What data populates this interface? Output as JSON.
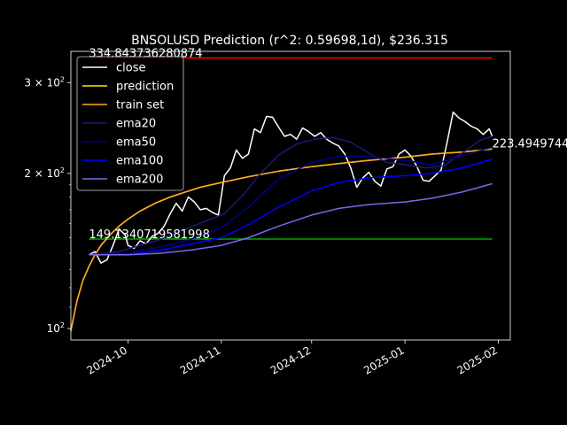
{
  "chart_data": {
    "type": "line",
    "title": "BNSOLUSD Prediction (r^2: 0.59698,1d), $236.315",
    "xlabel": "",
    "ylabel": "",
    "yscale": "log",
    "ylim": [
      95,
      345
    ],
    "xlim": [
      "2024-09-12",
      "2025-02-05"
    ],
    "y_ticks": [
      {
        "value": 100,
        "base": "10",
        "exp": "2"
      },
      {
        "value": 200,
        "base": "2 × 10",
        "exp": "2"
      },
      {
        "value": 300,
        "base": "3 × 10",
        "exp": "2"
      }
    ],
    "x_ticks": [
      {
        "date": "2024-10-01",
        "label": "2024-10"
      },
      {
        "date": "2024-11-01",
        "label": "2024-11"
      },
      {
        "date": "2024-12-01",
        "label": "2024-12"
      },
      {
        "date": "2025-01-01",
        "label": "2025-01"
      },
      {
        "date": "2025-02-01",
        "label": "2025-02"
      }
    ],
    "grid": false,
    "legend_position": "top-left",
    "annotations": [
      {
        "text": "334.84373628087​4",
        "x": "2024-09-18",
        "y": 334.8437362808744
      },
      {
        "text": "149.1340719581998",
        "x": "2024-09-18",
        "y": 149.1340719581998
      },
      {
        "text": "223.4949744",
        "x": "2025-01-30",
        "y": 223.4949744
      }
    ],
    "series": [
      {
        "name": "close",
        "color": "#ffffff",
        "x": [
          "2024-09-18",
          "2024-09-20",
          "2024-09-22",
          "2024-09-24",
          "2024-09-26",
          "2024-09-28",
          "2024-09-30",
          "2024-10-01",
          "2024-10-03",
          "2024-10-05",
          "2024-10-07",
          "2024-10-09",
          "2024-10-11",
          "2024-10-13",
          "2024-10-15",
          "2024-10-17",
          "2024-10-19",
          "2024-10-21",
          "2024-10-23",
          "2024-10-25",
          "2024-10-27",
          "2024-10-29",
          "2024-10-31",
          "2024-11-02",
          "2024-11-04",
          "2024-11-06",
          "2024-11-08",
          "2024-11-10",
          "2024-11-12",
          "2024-11-14",
          "2024-11-16",
          "2024-11-18",
          "2024-11-20",
          "2024-11-22",
          "2024-11-24",
          "2024-11-26",
          "2024-11-28",
          "2024-11-30",
          "2024-12-02",
          "2024-12-04",
          "2024-12-06",
          "2024-12-08",
          "2024-12-10",
          "2024-12-12",
          "2024-12-14",
          "2024-12-16",
          "2024-12-18",
          "2024-12-20",
          "2024-12-22",
          "2024-12-24",
          "2024-12-26",
          "2024-12-28",
          "2024-12-30",
          "2025-01-01",
          "2025-01-03",
          "2025-01-05",
          "2025-01-07",
          "2025-01-09",
          "2025-01-11",
          "2025-01-13",
          "2025-01-15",
          "2025-01-17",
          "2025-01-19",
          "2025-01-21",
          "2025-01-23",
          "2025-01-25",
          "2025-01-27",
          "2025-01-29",
          "2025-01-30"
        ],
        "y": [
          139,
          141,
          134,
          136,
          145,
          156,
          152,
          145,
          143,
          148,
          146,
          151,
          153,
          158,
          167,
          175,
          169,
          180,
          176,
          170,
          171,
          168,
          166,
          198,
          205,
          222,
          214,
          218,
          244,
          240,
          258,
          257,
          246,
          236,
          238,
          233,
          245,
          241,
          236,
          240,
          233,
          229,
          226,
          218,
          205,
          188,
          196,
          201,
          193,
          189,
          204,
          206,
          218,
          222,
          216,
          206,
          194,
          193,
          198,
          203,
          230,
          263,
          256,
          252,
          247,
          244,
          238,
          244,
          236
        ]
      },
      {
        "name": "prediction",
        "color": "#ffea00",
        "x": [
          "2024-09-12",
          "2024-09-14",
          "2024-09-16",
          "2024-09-18",
          "2024-09-20",
          "2024-09-22",
          "2024-09-25",
          "2024-09-28",
          "2024-10-01",
          "2024-10-05",
          "2024-10-10",
          "2024-10-15",
          "2024-10-20",
          "2024-10-25",
          "2024-11-01",
          "2024-11-10",
          "2024-11-20",
          "2024-12-01",
          "2024-12-10",
          "2024-12-20",
          "2025-01-01",
          "2025-01-10",
          "2025-01-20",
          "2025-01-30"
        ],
        "y": [
          99,
          113,
          124,
          132,
          139,
          145,
          152,
          158,
          163,
          169,
          175,
          180,
          184,
          188,
          192,
          197,
          202,
          206,
          209,
          212,
          215,
          218,
          220,
          223
        ]
      },
      {
        "name": "train set",
        "color": "#ffa726",
        "x": [
          "2024-09-12",
          "2024-09-14",
          "2024-09-16",
          "2024-09-18",
          "2024-09-20",
          "2024-09-22",
          "2024-09-25",
          "2024-09-28",
          "2024-10-01",
          "2024-10-05",
          "2024-10-10",
          "2024-10-15",
          "2024-10-20",
          "2024-10-25",
          "2024-11-01",
          "2024-11-10",
          "2024-11-20",
          "2024-12-01",
          "2024-12-10",
          "2024-12-20",
          "2025-01-01",
          "2025-01-10",
          "2025-01-20",
          "2025-01-30"
        ],
        "y": [
          99,
          113,
          124,
          132,
          139,
          145,
          152,
          158,
          163,
          169,
          175,
          180,
          184,
          188,
          192,
          197,
          202,
          206,
          209,
          212,
          215,
          218,
          220,
          223
        ]
      },
      {
        "name": "ema20",
        "color": "#1a1a7a",
        "x": [
          "2024-09-18",
          "2024-09-28",
          "2024-10-05",
          "2024-10-12",
          "2024-10-19",
          "2024-10-26",
          "2024-11-02",
          "2024-11-08",
          "2024-11-14",
          "2024-11-20",
          "2024-11-26",
          "2024-12-02",
          "2024-12-08",
          "2024-12-14",
          "2024-12-20",
          "2024-12-26",
          "2025-01-01",
          "2025-01-08",
          "2025-01-14",
          "2025-01-20",
          "2025-01-26",
          "2025-01-30"
        ],
        "y": [
          139,
          141,
          145,
          149,
          155,
          161,
          167,
          181,
          200,
          217,
          228,
          233,
          235,
          230,
          219,
          210,
          208,
          205,
          207,
          219,
          232,
          236
        ]
      },
      {
        "name": "ema50",
        "color": "#00008b",
        "x": [
          "2024-09-18",
          "2024-10-01",
          "2024-10-12",
          "2024-10-22",
          "2024-11-01",
          "2024-11-10",
          "2024-11-20",
          "2024-12-01",
          "2024-12-10",
          "2024-12-20",
          "2025-01-01",
          "2025-01-10",
          "2025-01-20",
          "2025-01-30"
        ],
        "y": [
          139,
          140,
          144,
          149,
          157,
          172,
          195,
          210,
          216,
          216,
          212,
          208,
          216,
          225
        ]
      },
      {
        "name": "ema100",
        "color": "#0000ff",
        "x": [
          "2024-09-18",
          "2024-10-01",
          "2024-10-12",
          "2024-10-22",
          "2024-11-01",
          "2024-11-10",
          "2024-11-20",
          "2024-12-01",
          "2024-12-10",
          "2024-12-20",
          "2025-01-01",
          "2025-01-10",
          "2025-01-20",
          "2025-01-30"
        ],
        "y": [
          139,
          139,
          142,
          146,
          150,
          159,
          172,
          185,
          192,
          196,
          198,
          200,
          205,
          213
        ]
      },
      {
        "name": "ema200",
        "color": "#7b68ee",
        "x": [
          "2024-09-18",
          "2024-10-01",
          "2024-10-12",
          "2024-10-22",
          "2024-11-01",
          "2024-11-10",
          "2024-11-20",
          "2024-12-01",
          "2024-12-10",
          "2024-12-20",
          "2025-01-01",
          "2025-01-10",
          "2025-01-20",
          "2025-01-30"
        ],
        "y": [
          139,
          139,
          140,
          142,
          145,
          150,
          158,
          166,
          171,
          174,
          176,
          179,
          184,
          191
        ]
      }
    ],
    "hlines": [
      {
        "color": "#ff0000",
        "y": 334.8437362808744,
        "x_from": "2024-09-18",
        "x_to": "2025-01-30"
      },
      {
        "color": "#00aa00",
        "y": 149.1340719581998,
        "x_from": "2024-09-18",
        "x_to": "2025-01-30"
      }
    ]
  }
}
